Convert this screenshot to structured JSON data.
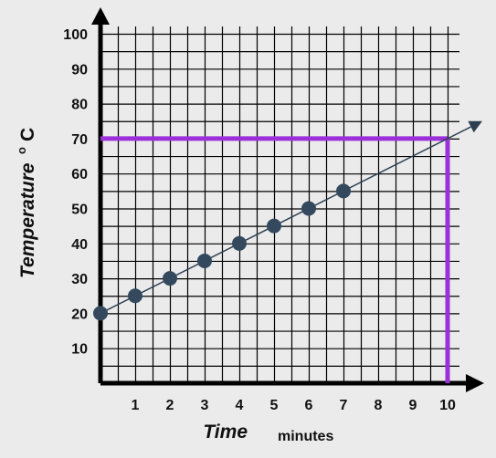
{
  "chart_data": {
    "type": "scatter",
    "x_label": "Time",
    "x_unit": "minutes",
    "y_label": "Temperature",
    "y_unit_degree": "o",
    "y_unit_letter": "C",
    "x_ticks": [
      "1",
      "2",
      "3",
      "4",
      "5",
      "6",
      "7",
      "8",
      "9",
      "10"
    ],
    "y_ticks": [
      "10",
      "20",
      "30",
      "40",
      "50",
      "60",
      "70",
      "80",
      "90",
      "100"
    ],
    "xlim": [
      0,
      10
    ],
    "ylim": [
      0,
      100
    ],
    "grid": true,
    "points": [
      {
        "x": 0,
        "y": 20
      },
      {
        "x": 1,
        "y": 25
      },
      {
        "x": 2,
        "y": 30
      },
      {
        "x": 3,
        "y": 35
      },
      {
        "x": 4,
        "y": 40
      },
      {
        "x": 5,
        "y": 45
      },
      {
        "x": 6,
        "y": 50
      },
      {
        "x": 7,
        "y": 55
      }
    ],
    "trend_line": {
      "x_start": 0,
      "y_start": 20,
      "x_end": 11,
      "y_end": 75
    },
    "highlight": {
      "x": 10,
      "y": 70,
      "color": "#9b30d9"
    },
    "point_color": "#34495e",
    "axis_color": "#000000"
  }
}
